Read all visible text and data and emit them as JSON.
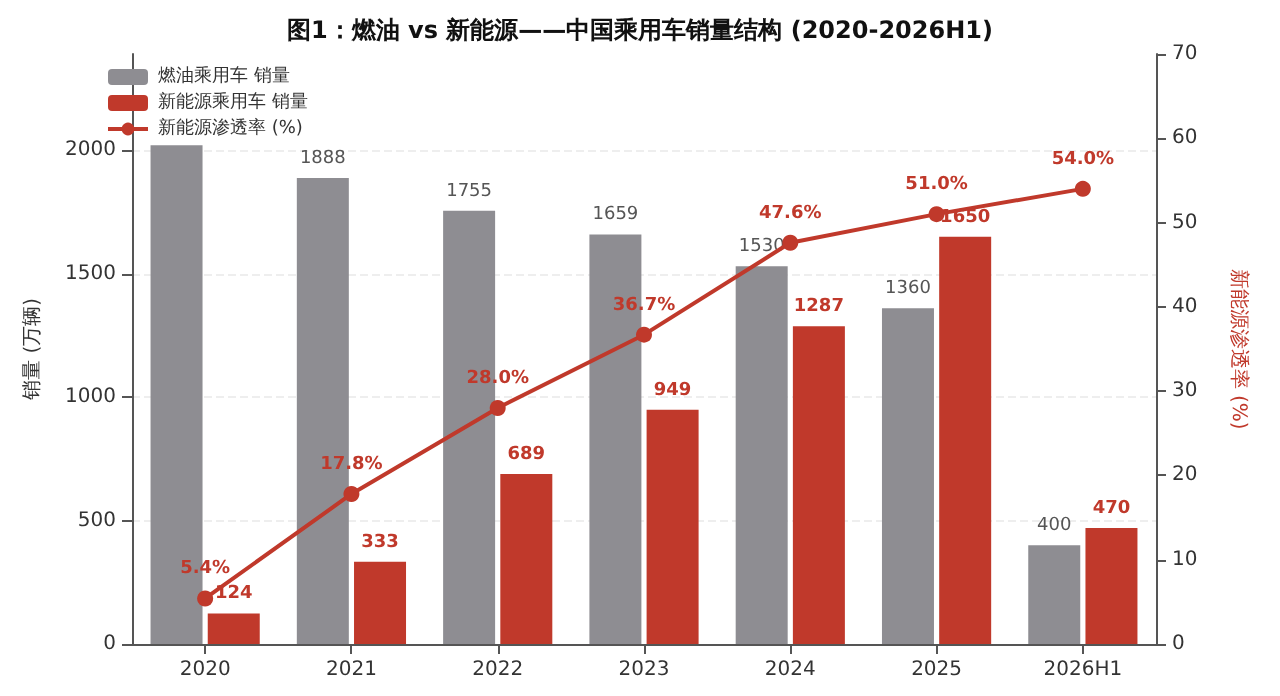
{
  "chart_data": {
    "type": "bar",
    "title": "图1：燃油 vs 新能源——中国乘用车销量结构 (2020-2026H1)",
    "ylabel": "销量 (万辆)",
    "y2label": "新能源渗透率 (%)",
    "categories": [
      "2020",
      "2021",
      "2022",
      "2023",
      "2024",
      "2025",
      "2026H1"
    ],
    "series": [
      {
        "name": "燃油乘用车 销量",
        "color": "#8e8d92",
        "values": [
          2020,
          1888,
          1755,
          1659,
          1530,
          1360,
          400
        ],
        "value_labels": [
          null,
          "1888",
          "1755",
          "1659",
          "1530",
          "1360",
          "400"
        ]
      },
      {
        "name": "新能源乘用车 销量",
        "color": "#c0392b",
        "values": [
          124,
          333,
          689,
          949,
          1287,
          1650,
          470
        ],
        "value_labels": [
          "124",
          "333",
          "689",
          "949",
          "1287",
          "1650",
          "470"
        ]
      },
      {
        "name": "新能源渗透率 (%)",
        "type": "line",
        "axis": "y2",
        "color": "#c0392b",
        "marker": "circle",
        "values": [
          5.4,
          17.8,
          28.0,
          36.7,
          47.6,
          51.0,
          54.0
        ],
        "value_labels": [
          "5.4%",
          "17.8%",
          "28.0%",
          "36.7%",
          "47.6%",
          "51.0%",
          "54.0%"
        ]
      }
    ],
    "ylim": [
      0,
      2390
    ],
    "yticks": [
      0,
      500,
      1000,
      1500,
      2000
    ],
    "y2lim": [
      0,
      70
    ],
    "y2ticks": [
      0,
      10,
      20,
      30,
      40,
      50,
      60,
      70
    ],
    "grid": "y",
    "legend": "top left"
  }
}
